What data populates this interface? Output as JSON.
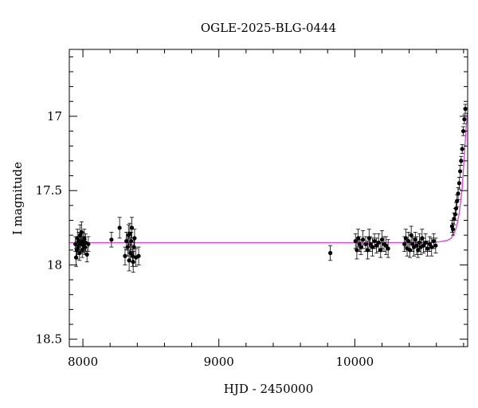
{
  "chart_data": {
    "type": "scatter",
    "title": "OGLE-2025-BLG-0444",
    "xlabel": "HJD - 2450000",
    "ylabel": "I magnitude",
    "xlim": [
      7900,
      10830
    ],
    "ylim": [
      18.55,
      16.55
    ],
    "y_inverted": true,
    "x_ticks": [
      8000,
      9000,
      10000
    ],
    "x_tick_labels": [
      "8000",
      "9000",
      "10000"
    ],
    "x_minor_step": 200,
    "y_ticks": [
      17,
      17.5,
      18,
      18.5
    ],
    "y_tick_labels": [
      "17",
      "17.5",
      "18",
      "18.5"
    ],
    "y_minor_step": 0.1,
    "grid": false,
    "legend": "none",
    "colors": {
      "data": "#000000",
      "model": "#e040e0"
    },
    "model": {
      "name": "",
      "baseline_mag": 17.85,
      "x": [
        7900,
        9000,
        10000,
        10550,
        10620,
        10680,
        10710,
        10730,
        10750,
        10770,
        10790,
        10800,
        10810,
        10820,
        10830
      ],
      "y": [
        17.85,
        17.85,
        17.85,
        17.849,
        17.845,
        17.835,
        17.82,
        17.79,
        17.74,
        17.64,
        17.48,
        17.34,
        17.2,
        17.06,
        16.97
      ]
    },
    "series": [
      {
        "name": "",
        "points": [
          [
            7945,
            17.86,
            0.05
          ],
          [
            7950,
            17.95,
            0.06
          ],
          [
            7955,
            17.9,
            0.06
          ],
          [
            7960,
            17.82,
            0.06
          ],
          [
            7965,
            17.88,
            0.05
          ],
          [
            7970,
            17.84,
            0.06
          ],
          [
            7975,
            17.92,
            0.05
          ],
          [
            7980,
            17.8,
            0.07
          ],
          [
            7985,
            17.86,
            0.05
          ],
          [
            7990,
            17.78,
            0.07
          ],
          [
            7995,
            17.9,
            0.05
          ],
          [
            8000,
            17.84,
            0.06
          ],
          [
            8005,
            17.87,
            0.05
          ],
          [
            8010,
            17.82,
            0.06
          ],
          [
            8015,
            17.88,
            0.05
          ],
          [
            8020,
            17.85,
            0.06
          ],
          [
            8030,
            17.93,
            0.05
          ],
          [
            8040,
            17.86,
            0.05
          ],
          [
            8210,
            17.83,
            0.05
          ],
          [
            8270,
            17.75,
            0.07
          ],
          [
            8310,
            17.94,
            0.06
          ],
          [
            8320,
            17.84,
            0.06
          ],
          [
            8330,
            17.88,
            0.06
          ],
          [
            8335,
            17.8,
            0.07
          ],
          [
            8340,
            17.97,
            0.07
          ],
          [
            8345,
            17.79,
            0.07
          ],
          [
            8350,
            17.92,
            0.06
          ],
          [
            8355,
            17.84,
            0.06
          ],
          [
            8360,
            17.75,
            0.07
          ],
          [
            8365,
            17.94,
            0.07
          ],
          [
            8370,
            17.98,
            0.07
          ],
          [
            8375,
            17.88,
            0.06
          ],
          [
            8380,
            17.82,
            0.06
          ],
          [
            8390,
            17.95,
            0.06
          ],
          [
            8410,
            17.94,
            0.06
          ],
          [
            9820,
            17.92,
            0.05
          ],
          [
            10005,
            17.84,
            0.05
          ],
          [
            10015,
            17.9,
            0.06
          ],
          [
            10025,
            17.82,
            0.06
          ],
          [
            10035,
            17.86,
            0.05
          ],
          [
            10045,
            17.88,
            0.05
          ],
          [
            10060,
            17.83,
            0.06
          ],
          [
            10080,
            17.86,
            0.05
          ],
          [
            10095,
            17.9,
            0.06
          ],
          [
            10105,
            17.82,
            0.06
          ],
          [
            10115,
            17.86,
            0.05
          ],
          [
            10130,
            17.88,
            0.06
          ],
          [
            10145,
            17.84,
            0.05
          ],
          [
            10160,
            17.87,
            0.05
          ],
          [
            10175,
            17.85,
            0.06
          ],
          [
            10190,
            17.9,
            0.05
          ],
          [
            10200,
            17.83,
            0.06
          ],
          [
            10215,
            17.86,
            0.05
          ],
          [
            10230,
            17.87,
            0.06
          ],
          [
            10245,
            17.89,
            0.06
          ],
          [
            10365,
            17.86,
            0.05
          ],
          [
            10375,
            17.82,
            0.06
          ],
          [
            10385,
            17.89,
            0.05
          ],
          [
            10395,
            17.84,
            0.06
          ],
          [
            10405,
            17.9,
            0.05
          ],
          [
            10415,
            17.8,
            0.06
          ],
          [
            10425,
            17.86,
            0.05
          ],
          [
            10435,
            17.88,
            0.06
          ],
          [
            10445,
            17.83,
            0.05
          ],
          [
            10455,
            17.87,
            0.06
          ],
          [
            10465,
            17.9,
            0.05
          ],
          [
            10475,
            17.85,
            0.06
          ],
          [
            10485,
            17.88,
            0.05
          ],
          [
            10495,
            17.82,
            0.06
          ],
          [
            10505,
            17.87,
            0.05
          ],
          [
            10520,
            17.85,
            0.06
          ],
          [
            10535,
            17.89,
            0.05
          ],
          [
            10550,
            17.86,
            0.05
          ],
          [
            10565,
            17.88,
            0.06
          ],
          [
            10580,
            17.84,
            0.05
          ],
          [
            10595,
            17.87,
            0.05
          ],
          [
            10715,
            17.74,
            0.04
          ],
          [
            10722,
            17.76,
            0.04
          ],
          [
            10730,
            17.69,
            0.04
          ],
          [
            10738,
            17.66,
            0.04
          ],
          [
            10745,
            17.62,
            0.04
          ],
          [
            10752,
            17.57,
            0.04
          ],
          [
            10760,
            17.52,
            0.04
          ],
          [
            10768,
            17.45,
            0.04
          ],
          [
            10775,
            17.37,
            0.04
          ],
          [
            10782,
            17.3,
            0.03
          ],
          [
            10790,
            17.22,
            0.03
          ],
          [
            10798,
            17.1,
            0.03
          ],
          [
            10806,
            17.02,
            0.03
          ],
          [
            10813,
            16.95,
            0.03
          ]
        ]
      }
    ]
  }
}
